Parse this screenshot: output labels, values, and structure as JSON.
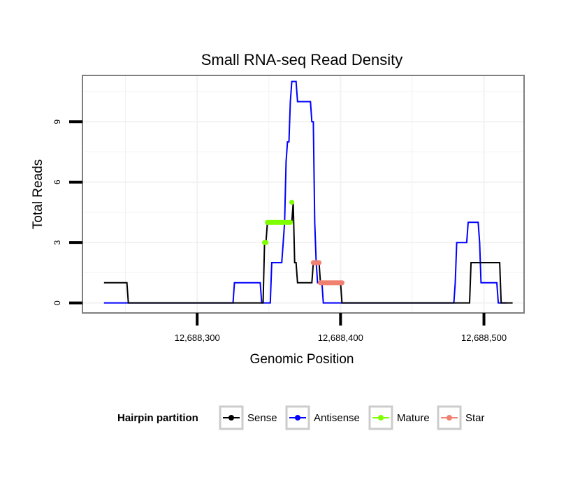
{
  "chart_data": {
    "type": "line",
    "title": "Small RNA-seq Read Density",
    "xlabel": "Genomic Position",
    "ylabel": "Total Reads",
    "xlim": [
      12688220,
      12688528
    ],
    "ylim": [
      -0.5,
      11.3
    ],
    "x_ticks": [
      12688300,
      12688400,
      12688500
    ],
    "x_tick_labels": [
      "12,688,300",
      "12,688,400",
      "12,688,500"
    ],
    "y_ticks": [
      0,
      3,
      6,
      9
    ],
    "y_tick_labels": [
      "0",
      "3",
      "6",
      "9"
    ],
    "grid": true,
    "legend": {
      "title": "Hairpin partition",
      "position": "bottom",
      "entries": [
        {
          "label": "Sense",
          "color": "#000000"
        },
        {
          "label": "Antisense",
          "color": "#0000ff"
        },
        {
          "label": "Mature",
          "color": "#7fff00"
        },
        {
          "label": "Star",
          "color": "#f08070"
        }
      ]
    },
    "series": [
      {
        "name": "Antisense",
        "kind": "line",
        "color": "#0000ff",
        "points": [
          [
            12688235,
            0
          ],
          [
            12688325,
            0
          ],
          [
            12688326,
            1
          ],
          [
            12688344,
            1
          ],
          [
            12688345,
            0
          ],
          [
            12688351,
            0
          ],
          [
            12688352,
            2
          ],
          [
            12688359,
            2
          ],
          [
            12688360,
            3
          ],
          [
            12688361,
            4
          ],
          [
            12688362,
            7
          ],
          [
            12688363,
            8
          ],
          [
            12688364,
            8
          ],
          [
            12688365,
            10
          ],
          [
            12688366,
            11
          ],
          [
            12688369,
            11
          ],
          [
            12688370,
            10
          ],
          [
            12688379,
            10
          ],
          [
            12688380,
            9
          ],
          [
            12688381,
            9
          ],
          [
            12688382,
            4
          ],
          [
            12688383,
            2
          ],
          [
            12688384,
            1
          ],
          [
            12688387,
            1
          ],
          [
            12688388,
            0
          ],
          [
            12688479,
            0
          ],
          [
            12688480,
            1
          ],
          [
            12688481,
            3
          ],
          [
            12688488,
            3
          ],
          [
            12688489,
            4
          ],
          [
            12688496,
            4
          ],
          [
            12688497,
            3
          ],
          [
            12688498,
            1
          ],
          [
            12688509,
            1
          ],
          [
            12688510,
            0
          ],
          [
            12688516,
            0
          ]
        ]
      },
      {
        "name": "Sense",
        "kind": "line",
        "color": "#000000",
        "points": [
          [
            12688235,
            1
          ],
          [
            12688251,
            1
          ],
          [
            12688252,
            0
          ],
          [
            12688346,
            0
          ],
          [
            12688347,
            3
          ],
          [
            12688348,
            3
          ],
          [
            12688349,
            4
          ],
          [
            12688366,
            4
          ],
          [
            12688367,
            5
          ],
          [
            12688368,
            2
          ],
          [
            12688369,
            2
          ],
          [
            12688370,
            1
          ],
          [
            12688380,
            1
          ],
          [
            12688381,
            2
          ],
          [
            12688385,
            2
          ],
          [
            12688386,
            1
          ],
          [
            12688400,
            1
          ],
          [
            12688401,
            0
          ],
          [
            12688490,
            0
          ],
          [
            12688491,
            2
          ],
          [
            12688511,
            2
          ],
          [
            12688512,
            0
          ],
          [
            12688520,
            0
          ]
        ]
      },
      {
        "name": "Mature",
        "kind": "points",
        "color": "#7fff00",
        "points": [
          [
            12688347,
            3
          ],
          [
            12688348,
            3
          ],
          [
            12688349,
            4
          ],
          [
            12688350,
            4
          ],
          [
            12688351,
            4
          ],
          [
            12688352,
            4
          ],
          [
            12688353,
            4
          ],
          [
            12688354,
            4
          ],
          [
            12688355,
            4
          ],
          [
            12688356,
            4
          ],
          [
            12688357,
            4
          ],
          [
            12688358,
            4
          ],
          [
            12688359,
            4
          ],
          [
            12688360,
            4
          ],
          [
            12688361,
            4
          ],
          [
            12688362,
            4
          ],
          [
            12688363,
            4
          ],
          [
            12688364,
            4
          ],
          [
            12688365,
            4
          ],
          [
            12688366,
            5
          ]
        ]
      },
      {
        "name": "Star",
        "kind": "points",
        "color": "#f08070",
        "points": [
          [
            12688381,
            2
          ],
          [
            12688382,
            2
          ],
          [
            12688383,
            2
          ],
          [
            12688384,
            2
          ],
          [
            12688385,
            2
          ],
          [
            12688386,
            1
          ],
          [
            12688387,
            1
          ],
          [
            12688388,
            1
          ],
          [
            12688389,
            1
          ],
          [
            12688390,
            1
          ],
          [
            12688391,
            1
          ],
          [
            12688392,
            1
          ],
          [
            12688393,
            1
          ],
          [
            12688394,
            1
          ],
          [
            12688395,
            1
          ],
          [
            12688396,
            1
          ],
          [
            12688397,
            1
          ],
          [
            12688398,
            1
          ],
          [
            12688399,
            1
          ],
          [
            12688400,
            1
          ],
          [
            12688401,
            1
          ]
        ]
      }
    ]
  }
}
